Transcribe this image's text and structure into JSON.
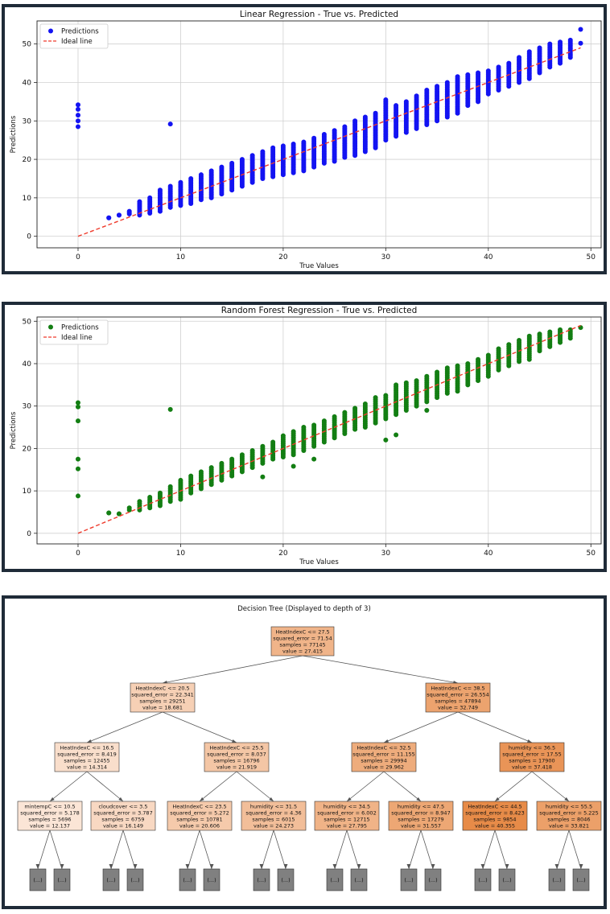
{
  "colors": {
    "linear_points": "#1313f2",
    "forest_points": "#137e13",
    "ideal_line": "#ef3b2c",
    "tree_node_low": "#fbe5d6",
    "tree_node_high": "#e78b48",
    "tree_leaf": "#808080",
    "frame": "#1f2b38"
  },
  "chart_data": [
    {
      "type": "scatter",
      "title": "Linear Regression - True vs. Predicted",
      "xlabel": "True Values",
      "ylabel": "Predictions",
      "xlim": [
        -4,
        51
      ],
      "ylim": [
        -3,
        56
      ],
      "xticks": [
        "0",
        "10",
        "20",
        "30",
        "40",
        "50"
      ],
      "yticks": [
        "0",
        "10",
        "20",
        "30",
        "40",
        "50"
      ],
      "grid": true,
      "legend_position": "top-left",
      "series": [
        {
          "name": "Predictions",
          "style": "points",
          "color": "blue",
          "columns": [
            {
              "x": 3,
              "ymin": 4.8,
              "ymax": 4.8
            },
            {
              "x": 4,
              "ymin": 5.5,
              "ymax": 5.5
            },
            {
              "x": 5,
              "ymin": 5.8,
              "ymax": 6.5
            },
            {
              "x": 6,
              "ymin": 5.5,
              "ymax": 9
            },
            {
              "x": 7,
              "ymin": 6,
              "ymax": 10
            },
            {
              "x": 8,
              "ymin": 6.5,
              "ymax": 12
            },
            {
              "x": 9,
              "ymin": 7.5,
              "ymax": 13
            },
            {
              "x": 10,
              "ymin": 8,
              "ymax": 14
            },
            {
              "x": 11,
              "ymin": 8.5,
              "ymax": 15
            },
            {
              "x": 12,
              "ymin": 9.5,
              "ymax": 16
            },
            {
              "x": 13,
              "ymin": 10,
              "ymax": 17
            },
            {
              "x": 14,
              "ymin": 11,
              "ymax": 18
            },
            {
              "x": 15,
              "ymin": 12,
              "ymax": 19
            },
            {
              "x": 16,
              "ymin": 13,
              "ymax": 20
            },
            {
              "x": 17,
              "ymin": 14,
              "ymax": 21
            },
            {
              "x": 18,
              "ymin": 15,
              "ymax": 22
            },
            {
              "x": 19,
              "ymin": 15.5,
              "ymax": 23
            },
            {
              "x": 20,
              "ymin": 16,
              "ymax": 23.5
            },
            {
              "x": 21,
              "ymin": 16.5,
              "ymax": 24
            },
            {
              "x": 22,
              "ymin": 17,
              "ymax": 24.5
            },
            {
              "x": 23,
              "ymin": 18,
              "ymax": 25.5
            },
            {
              "x": 24,
              "ymin": 19,
              "ymax": 26.5
            },
            {
              "x": 25,
              "ymin": 19.5,
              "ymax": 27.5
            },
            {
              "x": 26,
              "ymin": 20.5,
              "ymax": 28.5
            },
            {
              "x": 27,
              "ymin": 21,
              "ymax": 30
            },
            {
              "x": 28,
              "ymin": 22,
              "ymax": 31
            },
            {
              "x": 29,
              "ymin": 23,
              "ymax": 32
            },
            {
              "x": 30,
              "ymin": 25,
              "ymax": 35.5
            },
            {
              "x": 31,
              "ymin": 26,
              "ymax": 34
            },
            {
              "x": 32,
              "ymin": 27,
              "ymax": 35
            },
            {
              "x": 33,
              "ymin": 28,
              "ymax": 36.5
            },
            {
              "x": 34,
              "ymin": 29,
              "ymax": 38
            },
            {
              "x": 35,
              "ymin": 30,
              "ymax": 39
            },
            {
              "x": 36,
              "ymin": 31,
              "ymax": 40
            },
            {
              "x": 37,
              "ymin": 32,
              "ymax": 41.5
            },
            {
              "x": 38,
              "ymin": 34,
              "ymax": 42
            },
            {
              "x": 39,
              "ymin": 35,
              "ymax": 42.5
            },
            {
              "x": 40,
              "ymin": 37,
              "ymax": 43
            },
            {
              "x": 41,
              "ymin": 38,
              "ymax": 44
            },
            {
              "x": 42,
              "ymin": 39,
              "ymax": 45
            },
            {
              "x": 43,
              "ymin": 40,
              "ymax": 46.5
            },
            {
              "x": 44,
              "ymin": 41,
              "ymax": 48
            },
            {
              "x": 45,
              "ymin": 42.5,
              "ymax": 49
            },
            {
              "x": 46,
              "ymin": 44,
              "ymax": 50
            },
            {
              "x": 47,
              "ymin": 45,
              "ymax": 50.5
            },
            {
              "x": 48,
              "ymin": 46.5,
              "ymax": 51
            }
          ],
          "points": [
            {
              "x": 0,
              "y": 34.2
            },
            {
              "x": 0,
              "y": 33
            },
            {
              "x": 0,
              "y": 31.5
            },
            {
              "x": 0,
              "y": 30
            },
            {
              "x": 0,
              "y": 28.5
            },
            {
              "x": 9,
              "y": 29.2
            },
            {
              "x": 49,
              "y": 53.8
            },
            {
              "x": 49,
              "y": 50.2
            }
          ]
        },
        {
          "name": "Ideal line",
          "style": "dashed-line",
          "color": "red",
          "x": [
            0,
            49
          ],
          "y": [
            0,
            49
          ]
        }
      ]
    },
    {
      "type": "scatter",
      "title": "Random Forest Regression - True vs. Predicted",
      "xlabel": "True Values",
      "ylabel": "Predictions",
      "xlim": [
        -4,
        51
      ],
      "ylim": [
        -2.5,
        51
      ],
      "xticks": [
        "0",
        "10",
        "20",
        "30",
        "40",
        "50"
      ],
      "yticks": [
        "0",
        "10",
        "20",
        "30",
        "40",
        "50"
      ],
      "grid": true,
      "legend_position": "top-left",
      "series": [
        {
          "name": "Predictions",
          "style": "points",
          "color": "green",
          "columns": [
            {
              "x": 3,
              "ymin": 4.8,
              "ymax": 4.8
            },
            {
              "x": 4,
              "ymin": 4.6,
              "ymax": 4.6
            },
            {
              "x": 5,
              "ymin": 5.5,
              "ymax": 6
            },
            {
              "x": 6,
              "ymin": 5.5,
              "ymax": 7.5
            },
            {
              "x": 7,
              "ymin": 6,
              "ymax": 8.5
            },
            {
              "x": 8,
              "ymin": 6.5,
              "ymax": 9.5
            },
            {
              "x": 9,
              "ymin": 7.5,
              "ymax": 11
            },
            {
              "x": 10,
              "ymin": 8,
              "ymax": 12.5
            },
            {
              "x": 11,
              "ymin": 9.5,
              "ymax": 13.5
            },
            {
              "x": 12,
              "ymin": 10.5,
              "ymax": 14.5
            },
            {
              "x": 13,
              "ymin": 11.5,
              "ymax": 15.5
            },
            {
              "x": 14,
              "ymin": 12.5,
              "ymax": 16.5
            },
            {
              "x": 15,
              "ymin": 13.5,
              "ymax": 17.5
            },
            {
              "x": 16,
              "ymin": 14.5,
              "ymax": 18.5
            },
            {
              "x": 17,
              "ymin": 15.5,
              "ymax": 19.5
            },
            {
              "x": 18,
              "ymin": 16.5,
              "ymax": 20.5
            },
            {
              "x": 19,
              "ymin": 17.5,
              "ymax": 21.5
            },
            {
              "x": 20,
              "ymin": 18,
              "ymax": 23
            },
            {
              "x": 21,
              "ymin": 18.5,
              "ymax": 24
            },
            {
              "x": 22,
              "ymin": 19.5,
              "ymax": 25
            },
            {
              "x": 23,
              "ymin": 20.5,
              "ymax": 25.5
            },
            {
              "x": 24,
              "ymin": 21.5,
              "ymax": 26.5
            },
            {
              "x": 25,
              "ymin": 22.5,
              "ymax": 27.5
            },
            {
              "x": 26,
              "ymin": 23.5,
              "ymax": 28.5
            },
            {
              "x": 27,
              "ymin": 24.5,
              "ymax": 29.5
            },
            {
              "x": 28,
              "ymin": 25,
              "ymax": 30.5
            },
            {
              "x": 29,
              "ymin": 26,
              "ymax": 32
            },
            {
              "x": 30,
              "ymin": 27,
              "ymax": 32.5
            },
            {
              "x": 31,
              "ymin": 28,
              "ymax": 35
            },
            {
              "x": 32,
              "ymin": 29,
              "ymax": 35.5
            },
            {
              "x": 33,
              "ymin": 30,
              "ymax": 36
            },
            {
              "x": 34,
              "ymin": 31,
              "ymax": 37
            },
            {
              "x": 35,
              "ymin": 32,
              "ymax": 38
            },
            {
              "x": 36,
              "ymin": 33,
              "ymax": 39
            },
            {
              "x": 37,
              "ymin": 34,
              "ymax": 39.5
            },
            {
              "x": 38,
              "ymin": 35,
              "ymax": 40
            },
            {
              "x": 39,
              "ymin": 36,
              "ymax": 41
            },
            {
              "x": 40,
              "ymin": 37,
              "ymax": 42
            },
            {
              "x": 41,
              "ymin": 38.5,
              "ymax": 43.5
            },
            {
              "x": 42,
              "ymin": 39.5,
              "ymax": 44.5
            },
            {
              "x": 43,
              "ymin": 40.5,
              "ymax": 45.5
            },
            {
              "x": 44,
              "ymin": 41.5,
              "ymax": 46.5
            },
            {
              "x": 45,
              "ymin": 43,
              "ymax": 47
            },
            {
              "x": 46,
              "ymin": 44,
              "ymax": 47.5
            },
            {
              "x": 47,
              "ymin": 45,
              "ymax": 48
            },
            {
              "x": 48,
              "ymin": 46,
              "ymax": 48
            }
          ],
          "points": [
            {
              "x": 0,
              "y": 30.8
            },
            {
              "x": 0,
              "y": 29.8
            },
            {
              "x": 0,
              "y": 26.5
            },
            {
              "x": 0,
              "y": 17.5
            },
            {
              "x": 0,
              "y": 15.2
            },
            {
              "x": 0,
              "y": 8.8
            },
            {
              "x": 9,
              "y": 29.2
            },
            {
              "x": 18,
              "y": 13.3
            },
            {
              "x": 21,
              "y": 15.8
            },
            {
              "x": 23,
              "y": 17.5
            },
            {
              "x": 30,
              "y": 22
            },
            {
              "x": 31,
              "y": 23.2
            },
            {
              "x": 34,
              "y": 29
            },
            {
              "x": 37,
              "y": 33.5
            },
            {
              "x": 44,
              "y": 41
            },
            {
              "x": 49,
              "y": 48.5
            }
          ]
        },
        {
          "name": "Ideal line",
          "style": "dashed-line",
          "color": "red",
          "x": [
            0,
            49
          ],
          "y": [
            0,
            49
          ]
        }
      ]
    }
  ],
  "tree": {
    "title": "Decision Tree (Displayed to depth of 3)",
    "leaf_label": "(...)",
    "nodes": [
      {
        "id": "n0",
        "level": 0,
        "lines": [
          "HeatIndexC <= 27.5",
          "squared_error = 71.54",
          "samples = 77145",
          "value = 27.415"
        ],
        "value": 27.415
      },
      {
        "id": "n1",
        "level": 1,
        "lines": [
          "HeatIndexC <= 20.5",
          "squared_error = 22.341",
          "samples = 29251",
          "value = 18.681"
        ],
        "value": 18.681
      },
      {
        "id": "n2",
        "level": 1,
        "lines": [
          "HeatIndexC <= 38.5",
          "squared_error = 26.554",
          "samples = 47894",
          "value = 32.749"
        ],
        "value": 32.749
      },
      {
        "id": "n3",
        "level": 2,
        "lines": [
          "HeatIndexC <= 16.5",
          "squared_error = 8.419",
          "samples = 12455",
          "value = 14.314"
        ],
        "value": 14.314
      },
      {
        "id": "n4",
        "level": 2,
        "lines": [
          "HeatIndexC <= 25.5",
          "squared_error = 8.037",
          "samples = 16796",
          "value = 21.919"
        ],
        "value": 21.919
      },
      {
        "id": "n5",
        "level": 2,
        "lines": [
          "HeatIndexC <= 32.5",
          "squared_error = 11.155",
          "samples = 29994",
          "value = 29.962"
        ],
        "value": 29.962
      },
      {
        "id": "n6",
        "level": 2,
        "lines": [
          "humidity <= 36.5",
          "squared_error = 17.55",
          "samples = 17900",
          "value = 37.418"
        ],
        "value": 37.418
      },
      {
        "id": "n7",
        "level": 3,
        "lines": [
          "mintempC <= 10.5",
          "squared_error = 5.178",
          "samples = 5696",
          "value = 12.137"
        ],
        "value": 12.137
      },
      {
        "id": "n8",
        "level": 3,
        "lines": [
          "cloudcover <= 3.5",
          "squared_error = 3.787",
          "samples = 6759",
          "value = 16.149"
        ],
        "value": 16.149
      },
      {
        "id": "n9",
        "level": 3,
        "lines": [
          "HeatIndexC <= 23.5",
          "squared_error = 5.272",
          "samples = 10781",
          "value = 20.606"
        ],
        "value": 20.606
      },
      {
        "id": "n10",
        "level": 3,
        "lines": [
          "humidity <= 31.5",
          "squared_error = 4.36",
          "samples = 6015",
          "value = 24.273"
        ],
        "value": 24.273
      },
      {
        "id": "n11",
        "level": 3,
        "lines": [
          "humidity <= 34.5",
          "squared_error = 6.002",
          "samples = 12715",
          "value = 27.795"
        ],
        "value": 27.795
      },
      {
        "id": "n12",
        "level": 3,
        "lines": [
          "humidity <= 47.5",
          "squared_error = 8.947",
          "samples = 17279",
          "value = 31.557"
        ],
        "value": 31.557
      },
      {
        "id": "n13",
        "level": 3,
        "lines": [
          "HeatIndexC <= 44.5",
          "squared_error = 8.423",
          "samples = 9854",
          "value = 40.355"
        ],
        "value": 40.355
      },
      {
        "id": "n14",
        "level": 3,
        "lines": [
          "humidity <= 55.5",
          "squared_error = 5.225",
          "samples = 8046",
          "value = 33.821"
        ],
        "value": 33.821
      }
    ]
  }
}
